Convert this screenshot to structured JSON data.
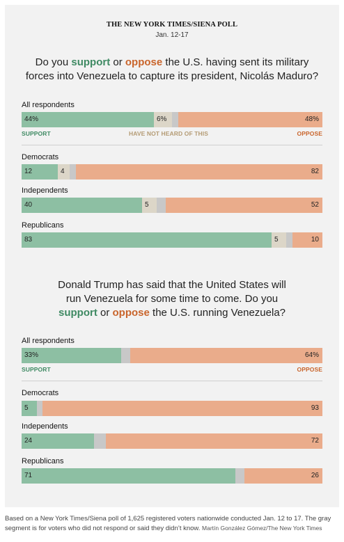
{
  "header": {
    "title": "THE NEW YORK TIMES/SIENA POLL",
    "date": "Jan. 12-17"
  },
  "question1": {
    "pre": "Do you ",
    "support": "support",
    "mid": " or ",
    "oppose": "oppose",
    "post_line1": " the U.S. having sent its military",
    "line2": "forces into Venezuela to capture its president, Nicolás Maduro?"
  },
  "question2": {
    "line1": "Donald Trump has said that the United States will",
    "line2": "run Venezuela for some time to come. Do you",
    "support": "support",
    "mid": " or ",
    "oppose": "oppose",
    "post": " the U.S. running Venezuela?"
  },
  "labels": {
    "support": "SUPPORT",
    "oppose": "OPPOSE",
    "unheard": "HAVE NOT HEARD OF THIS"
  },
  "colors": {
    "support": "#8dbfa3",
    "not_heard": "#dcd6c8",
    "no_answer": "#c8c8c8",
    "oppose": "#eaac8b",
    "support_text": "#3f8a63",
    "oppose_text": "#c9652c"
  },
  "chart_data": [
    {
      "type": "bar",
      "orientation": "horizontal-stacked",
      "categories": [
        "All respondents",
        "Democrats",
        "Independents",
        "Republicans"
      ],
      "series": [
        {
          "name": "SUPPORT",
          "values": [
            44,
            12,
            40,
            83
          ],
          "labels": [
            "44%",
            "12",
            "40",
            "83"
          ]
        },
        {
          "name": "HAVE NOT HEARD OF THIS",
          "values": [
            6,
            4,
            5,
            5
          ],
          "labels": [
            "6%",
            "4",
            "5",
            "5"
          ]
        },
        {
          "name": "",
          "values": [
            2,
            2,
            3,
            2
          ],
          "labels": [
            "",
            "",
            "",
            ""
          ]
        },
        {
          "name": "OPPOSE",
          "values": [
            48,
            82,
            52,
            10
          ],
          "labels": [
            "48%",
            "82",
            "52",
            "10"
          ]
        }
      ],
      "xlim": [
        0,
        100
      ]
    },
    {
      "type": "bar",
      "orientation": "horizontal-stacked",
      "categories": [
        "All respondents",
        "Democrats",
        "Independents",
        "Republicans"
      ],
      "series": [
        {
          "name": "SUPPORT",
          "values": [
            33,
            5,
            24,
            71
          ],
          "labels": [
            "33%",
            "5",
            "24",
            "71"
          ]
        },
        {
          "name": "",
          "values": [
            3,
            2,
            4,
            3
          ],
          "labels": [
            "",
            "",
            "",
            ""
          ]
        },
        {
          "name": "OPPOSE",
          "values": [
            64,
            93,
            72,
            26
          ],
          "labels": [
            "64%",
            "93",
            "72",
            "26"
          ]
        }
      ],
      "xlim": [
        0,
        100
      ]
    }
  ],
  "footnote": {
    "text": "Based on a New York Times/Siena poll of 1,625 registered voters nationwide conducted Jan. 12 to 17. The gray segment is for voters who did not respond or said they didn’t know.",
    "credit": "Martín González Gómez/The New York Times"
  }
}
